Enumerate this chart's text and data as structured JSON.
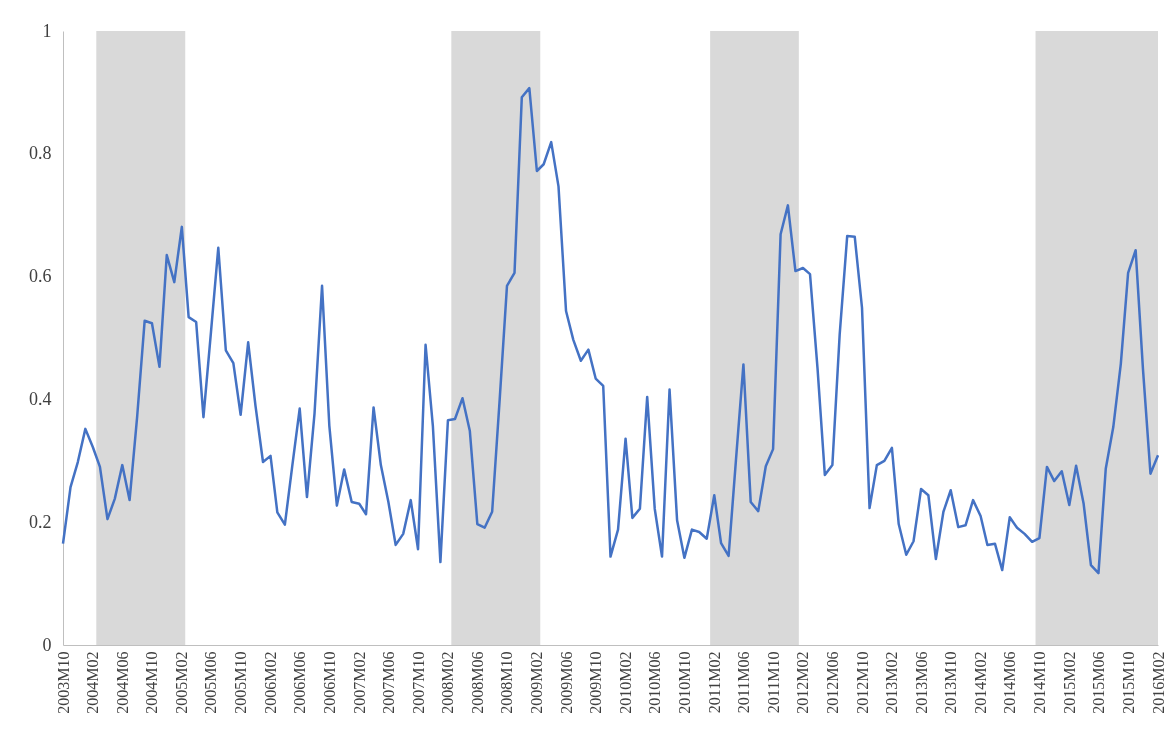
{
  "chart_data": {
    "type": "line",
    "grid": false,
    "x": [
      "2003-10",
      "2003-11",
      "2003-12",
      "2004-01",
      "2004-02",
      "2004-03",
      "2004-04",
      "2004-05",
      "2004-06",
      "2004-07",
      "2004-08",
      "2004-09",
      "2004-10",
      "2004-11",
      "2004-12",
      "2005-01",
      "2005-02",
      "2005-03",
      "2005-04",
      "2005-05",
      "2005-06",
      "2005-07",
      "2005-08",
      "2005-09",
      "2005-10",
      "2005-11",
      "2005-12",
      "2006-01",
      "2006-02",
      "2006-03",
      "2006-04",
      "2006-05",
      "2006-06",
      "2006-07",
      "2006-08",
      "2006-09",
      "2006-10",
      "2006-11",
      "2006-12",
      "2007-01",
      "2007-02",
      "2007-03",
      "2007-04",
      "2007-05",
      "2007-06",
      "2007-07",
      "2007-08",
      "2007-09",
      "2007-10",
      "2007-11",
      "2007-12",
      "2008-01",
      "2008-02",
      "2008-03",
      "2008-04",
      "2008-05",
      "2008-06",
      "2008-07",
      "2008-08",
      "2008-09",
      "2008-10",
      "2008-11",
      "2008-12",
      "2009-01",
      "2009-02",
      "2009-03",
      "2009-04",
      "2009-05",
      "2009-06",
      "2009-07",
      "2009-08",
      "2009-09",
      "2009-10",
      "2009-11",
      "2009-12",
      "2010-01",
      "2010-02",
      "2010-03",
      "2010-04",
      "2010-05",
      "2010-06",
      "2010-07",
      "2010-08",
      "2010-09",
      "2010-10",
      "2010-11",
      "2010-12",
      "2011-01",
      "2011-02",
      "2011-03",
      "2011-04",
      "2011-05",
      "2011-06",
      "2011-07",
      "2011-08",
      "2011-09",
      "2011-10",
      "2011-11",
      "2011-12",
      "2012-01",
      "2012-02",
      "2012-03",
      "2012-04",
      "2012-05",
      "2012-06",
      "2012-07",
      "2012-08",
      "2012-09",
      "2012-10",
      "2012-11",
      "2012-12",
      "2013-01",
      "2013-02",
      "2013-03",
      "2013-04",
      "2013-05",
      "2013-06",
      "2013-07",
      "2013-08",
      "2013-09",
      "2013-10",
      "2013-11",
      "2013-12",
      "2014-01",
      "2014-02",
      "2014-03",
      "2014-04",
      "2014-05",
      "2014-06",
      "2014-07",
      "2014-08",
      "2014-09",
      "2014-10",
      "2014-11",
      "2014-12",
      "2015-01",
      "2015-02",
      "2015-03",
      "2015-04",
      "2015-05",
      "2015-06",
      "2015-07",
      "2015-08",
      "2015-09",
      "2015-10",
      "2015-11",
      "2015-12",
      "2016-01",
      "2016-02"
    ],
    "series": [
      {
        "color": "#4472c4",
        "values": [
          0.165,
          0.257,
          0.298,
          0.352,
          0.322,
          0.29,
          0.205,
          0.238,
          0.293,
          0.236,
          0.371,
          0.528,
          0.524,
          0.453,
          0.635,
          0.591,
          0.681,
          0.534,
          0.526,
          0.371,
          0.51,
          0.647,
          0.48,
          0.459,
          0.375,
          0.493,
          0.39,
          0.298,
          0.308,
          0.216,
          0.196,
          0.29,
          0.385,
          0.241,
          0.377,
          0.585,
          0.357,
          0.227,
          0.286,
          0.233,
          0.23,
          0.213,
          0.387,
          0.293,
          0.233,
          0.163,
          0.181,
          0.236,
          0.156,
          0.489,
          0.357,
          0.135,
          0.366,
          0.368,
          0.402,
          0.349,
          0.197,
          0.191,
          0.217,
          0.4,
          0.585,
          0.606,
          0.892,
          0.907,
          0.772,
          0.783,
          0.819,
          0.747,
          0.544,
          0.497,
          0.463,
          0.481,
          0.434,
          0.422,
          0.144,
          0.188,
          0.336,
          0.207,
          0.222,
          0.404,
          0.222,
          0.144,
          0.416,
          0.203,
          0.142,
          0.188,
          0.184,
          0.173,
          0.244,
          0.166,
          0.145,
          0.3,
          0.457,
          0.233,
          0.218,
          0.291,
          0.319,
          0.669,
          0.716,
          0.609,
          0.614,
          0.604,
          0.45,
          0.277,
          0.293,
          0.505,
          0.666,
          0.665,
          0.549,
          0.223,
          0.293,
          0.3,
          0.321,
          0.197,
          0.147,
          0.169,
          0.254,
          0.244,
          0.14,
          0.217,
          0.252,
          0.192,
          0.195,
          0.236,
          0.21,
          0.163,
          0.165,
          0.122,
          0.208,
          0.191,
          0.181,
          0.168,
          0.174,
          0.29,
          0.267,
          0.283,
          0.228,
          0.292,
          0.23,
          0.13,
          0.117,
          0.287,
          0.355,
          0.458,
          0.606,
          0.643,
          0.45,
          0.279,
          0.309
        ]
      }
    ],
    "xlim": [
      "2003-10",
      "2016-02"
    ],
    "xticks": [
      {
        "value": "2003-10",
        "label": "2003M10"
      },
      {
        "value": "2004-02",
        "label": "2004M02"
      },
      {
        "value": "2004-06",
        "label": "2004M06"
      },
      {
        "value": "2004-10",
        "label": "2004M10"
      },
      {
        "value": "2005-02",
        "label": "2005M02"
      },
      {
        "value": "2005-06",
        "label": "2005M06"
      },
      {
        "value": "2005-10",
        "label": "2005M10"
      },
      {
        "value": "2006-02",
        "label": "2006M02"
      },
      {
        "value": "2006-06",
        "label": "2006M06"
      },
      {
        "value": "2006-10",
        "label": "2006M10"
      },
      {
        "value": "2007-02",
        "label": "2007M02"
      },
      {
        "value": "2007-06",
        "label": "2007M06"
      },
      {
        "value": "2007-10",
        "label": "2007M10"
      },
      {
        "value": "2008-02",
        "label": "2008M02"
      },
      {
        "value": "2008-06",
        "label": "2008M06"
      },
      {
        "value": "2008-10",
        "label": "2008M10"
      },
      {
        "value": "2009-02",
        "label": "2009M02"
      },
      {
        "value": "2009-06",
        "label": "2009M06"
      },
      {
        "value": "2009-10",
        "label": "2009M10"
      },
      {
        "value": "2010-02",
        "label": "2010M02"
      },
      {
        "value": "2010-06",
        "label": "2010M06"
      },
      {
        "value": "2010-10",
        "label": "2010M10"
      },
      {
        "value": "2011-02",
        "label": "2011M02"
      },
      {
        "value": "2011-06",
        "label": "2011M06"
      },
      {
        "value": "2011-10",
        "label": "2011M10"
      },
      {
        "value": "2012-02",
        "label": "2012M02"
      },
      {
        "value": "2012-06",
        "label": "2012M06"
      },
      {
        "value": "2012-10",
        "label": "2012M10"
      },
      {
        "value": "2013-02",
        "label": "2013M02"
      },
      {
        "value": "2013-06",
        "label": "2013M06"
      },
      {
        "value": "2013-10",
        "label": "2013M10"
      },
      {
        "value": "2014-02",
        "label": "2014M02"
      },
      {
        "value": "2014-06",
        "label": "2014M06"
      },
      {
        "value": "2014-10",
        "label": "2014M10"
      },
      {
        "value": "2015-02",
        "label": "2015M02"
      },
      {
        "value": "2015-06",
        "label": "2015M06"
      },
      {
        "value": "2015-10",
        "label": "2015M10"
      },
      {
        "value": "2016-02",
        "label": "2016M02"
      }
    ],
    "ylim": [
      0,
      1
    ],
    "yticks": [
      0,
      0.2,
      0.4,
      0.6,
      0.8,
      1
    ],
    "bands": [
      {
        "axis": "x",
        "from": "2004-02-15",
        "to": "2005-02-15",
        "color": "#d9d9d9"
      },
      {
        "axis": "x",
        "from": "2008-02-15",
        "to": "2009-02-15",
        "color": "#d9d9d9"
      },
      {
        "axis": "x",
        "from": "2011-01-15",
        "to": "2012-01-15",
        "color": "#d9d9d9"
      },
      {
        "axis": "x",
        "from": "2014-09-15",
        "to": "2016-02",
        "color": "#d9d9d9"
      }
    ]
  }
}
